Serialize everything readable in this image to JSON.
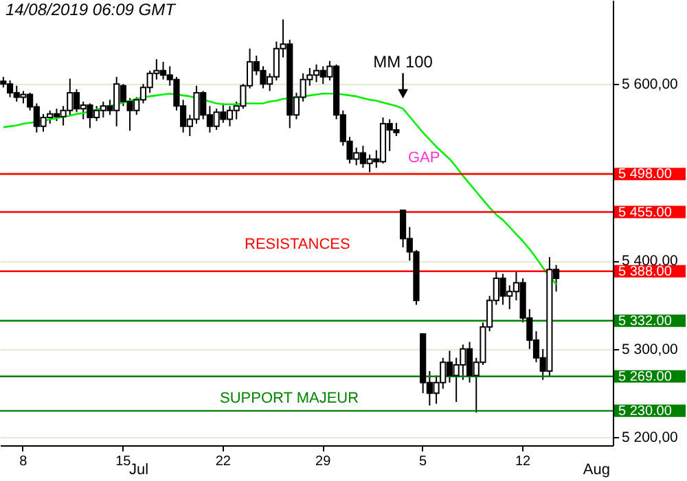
{
  "chart_data": {
    "type": "candlestick",
    "title": "14/08/2019 06:09 GMT",
    "categories": [
      null,
      null,
      null,
      "8",
      null,
      null,
      null,
      null,
      null,
      null,
      null,
      null,
      null,
      null,
      null,
      null,
      null,
      null,
      "15",
      null,
      null,
      null,
      null,
      null,
      null,
      null,
      null,
      null,
      null,
      null,
      null,
      null,
      null,
      "22",
      null,
      null,
      null,
      null,
      null,
      null,
      null,
      null,
      null,
      null,
      null,
      null,
      null,
      null,
      "29",
      null,
      null,
      null,
      null,
      null,
      null,
      null,
      null,
      null,
      null,
      null,
      null,
      null,
      null,
      "5",
      null,
      null,
      null,
      null,
      null,
      null,
      null,
      null,
      null,
      null,
      null,
      null,
      null,
      null,
      "12",
      null,
      null,
      null,
      null,
      null,
      null,
      null,
      null,
      null,
      null,
      null,
      null,
      null
    ],
    "color": "#000000",
    "ohlc": [
      [
        5603,
        5608,
        5596,
        5600
      ],
      [
        5600,
        5604,
        5585,
        5590
      ],
      [
        5590,
        5598,
        5580,
        5585
      ],
      [
        5585,
        5592,
        5578,
        5588
      ],
      [
        5588,
        5590,
        5570,
        5574
      ],
      [
        5574,
        5578,
        5545,
        5552
      ],
      [
        5552,
        5566,
        5546,
        5562
      ],
      [
        5562,
        5570,
        5555,
        5566
      ],
      [
        5566,
        5572,
        5558,
        5563
      ],
      [
        5563,
        5575,
        5553,
        5570
      ],
      [
        5570,
        5606,
        5565,
        5590
      ],
      [
        5590,
        5594,
        5568,
        5572
      ],
      [
        5572,
        5580,
        5560,
        5576
      ],
      [
        5576,
        5578,
        5550,
        5562
      ],
      [
        5562,
        5575,
        5558,
        5570
      ],
      [
        5570,
        5580,
        5562,
        5575
      ],
      [
        5575,
        5582,
        5565,
        5570
      ],
      [
        5570,
        5608,
        5552,
        5600
      ],
      [
        5598,
        5600,
        5575,
        5580
      ],
      [
        5580,
        5584,
        5547,
        5570
      ],
      [
        5570,
        5585,
        5565,
        5582
      ],
      [
        5582,
        5600,
        5578,
        5596
      ],
      [
        5596,
        5615,
        5590,
        5612
      ],
      [
        5612,
        5628,
        5605,
        5615
      ],
      [
        5615,
        5625,
        5605,
        5610
      ],
      [
        5610,
        5620,
        5598,
        5605
      ],
      [
        5605,
        5608,
        5570,
        5575
      ],
      [
        5575,
        5582,
        5545,
        5552
      ],
      [
        5552,
        5565,
        5541,
        5560
      ],
      [
        5560,
        5598,
        5555,
        5590
      ],
      [
        5590,
        5592,
        5560,
        5565
      ],
      [
        5565,
        5575,
        5545,
        5552
      ],
      [
        5552,
        5572,
        5548,
        5568
      ],
      [
        5568,
        5578,
        5556,
        5560
      ],
      [
        5560,
        5575,
        5552,
        5570
      ],
      [
        5570,
        5580,
        5560,
        5575
      ],
      [
        5575,
        5600,
        5572,
        5598
      ],
      [
        5598,
        5640,
        5595,
        5625
      ],
      [
        5625,
        5632,
        5610,
        5615
      ],
      [
        5615,
        5620,
        5595,
        5600
      ],
      [
        5600,
        5612,
        5592,
        5608
      ],
      [
        5608,
        5648,
        5604,
        5640
      ],
      [
        5640,
        5673,
        5630,
        5645
      ],
      [
        5645,
        5650,
        5550,
        5565
      ],
      [
        5565,
        5590,
        5560,
        5585
      ],
      [
        5585,
        5612,
        5580,
        5605
      ],
      [
        5605,
        5618,
        5598,
        5610
      ],
      [
        5610,
        5622,
        5602,
        5615
      ],
      [
        5615,
        5620,
        5600,
        5608
      ],
      [
        5608,
        5626,
        5604,
        5620
      ],
      [
        5620,
        5622,
        5560,
        5565
      ],
      [
        5565,
        5570,
        5530,
        5535
      ],
      [
        5535,
        5540,
        5510,
        5515
      ],
      [
        5515,
        5528,
        5508,
        5522
      ],
      [
        5522,
        5530,
        5505,
        5510
      ],
      [
        5510,
        5520,
        5500,
        5515
      ],
      [
        5515,
        5525,
        5505,
        5512
      ],
      [
        5512,
        5562,
        5510,
        5555
      ],
      [
        5555,
        5560,
        5524,
        5548
      ],
      [
        5548,
        5556,
        5541,
        5545
      ],
      [
        5457,
        5457,
        5415,
        5425
      ],
      [
        5425,
        5438,
        5400,
        5410
      ],
      [
        5410,
        5412,
        5350,
        5355
      ],
      [
        5317,
        5317,
        5250,
        5262
      ],
      [
        5262,
        5275,
        5236,
        5250
      ],
      [
        5250,
        5270,
        5238,
        5262
      ],
      [
        5262,
        5290,
        5255,
        5285
      ],
      [
        5285,
        5298,
        5262,
        5270
      ],
      [
        5270,
        5290,
        5240,
        5282
      ],
      [
        5282,
        5305,
        5265,
        5300
      ],
      [
        5300,
        5308,
        5262,
        5270
      ],
      [
        5270,
        5290,
        5228,
        5285
      ],
      [
        5285,
        5330,
        5282,
        5325
      ],
      [
        5325,
        5360,
        5320,
        5355
      ],
      [
        5355,
        5388,
        5350,
        5380
      ],
      [
        5380,
        5385,
        5350,
        5360
      ],
      [
        5360,
        5372,
        5345,
        5365
      ],
      [
        5365,
        5388,
        5355,
        5375
      ],
      [
        5375,
        5380,
        5330,
        5335
      ],
      [
        5335,
        5345,
        5300,
        5310
      ],
      [
        5310,
        5320,
        5285,
        5290
      ],
      [
        5290,
        5300,
        5265,
        5275
      ],
      [
        5275,
        5404,
        5268,
        5390
      ],
      [
        5390,
        5395,
        5365,
        5380
      ],
      null,
      null,
      null,
      null,
      null,
      null,
      null,
      null
    ],
    "series": [
      {
        "name": "MM 100",
        "type": "line",
        "color": "#00ee00",
        "values": [
          5551,
          5552,
          5553,
          5555,
          5556,
          5557,
          5558,
          5560,
          5561,
          5563,
          5564,
          5566,
          5567,
          5569,
          5571,
          5573,
          5575,
          5577,
          5579,
          5581,
          5583,
          5585,
          5586,
          5587,
          5588,
          5589,
          5588,
          5587,
          5586,
          5584,
          5582,
          5580,
          5578,
          5577,
          5577,
          5577,
          5578,
          5578,
          5578,
          5578,
          5580,
          5581,
          5583,
          5584,
          5585,
          5586,
          5587,
          5588,
          5589,
          5589,
          5589,
          5588,
          5587,
          5586,
          5584,
          5582,
          5581,
          5579,
          5577,
          5575,
          5572,
          5563,
          5554,
          5545,
          5537,
          5529,
          5522,
          5515,
          5506,
          5496,
          5487,
          5478,
          5469,
          5460,
          5452,
          5446,
          5438,
          5430,
          5422,
          5413,
          5403,
          5392,
          5383,
          5373,
          null,
          null,
          null,
          null,
          null,
          null,
          null,
          null
        ]
      }
    ],
    "ylim": [
      5191,
      5695
    ],
    "yticks": [
      {
        "value": 5200,
        "label": "5 200,00"
      },
      {
        "value": 5300,
        "label": "5 300,00"
      },
      {
        "value": 5400,
        "label": "5 400,00"
      },
      {
        "value": 5500,
        "label": null
      },
      {
        "value": 5600,
        "label": "5 600,00"
      }
    ],
    "grid": "y",
    "ref_lines": [
      {
        "axis": "y",
        "value": 5498,
        "label": "5 498.00",
        "color": "#ff0000"
      },
      {
        "axis": "y",
        "value": 5455,
        "label": "5 455.00",
        "color": "#ff0000"
      },
      {
        "axis": "y",
        "value": 5388,
        "label": "5 388.00",
        "color": "#ff0000"
      },
      {
        "axis": "y",
        "value": 5332,
        "label": "5 332.00",
        "color": "#008000"
      },
      {
        "axis": "y",
        "value": 5269,
        "label": "5 269.00",
        "color": "#008000"
      },
      {
        "axis": "y",
        "value": 5230,
        "label": "5 230.00",
        "color": "#008000"
      }
    ],
    "annotations": [
      "RESISTANCES",
      "SUPPORT MAJEUR",
      "GAP",
      "Jul",
      "Aug"
    ]
  }
}
